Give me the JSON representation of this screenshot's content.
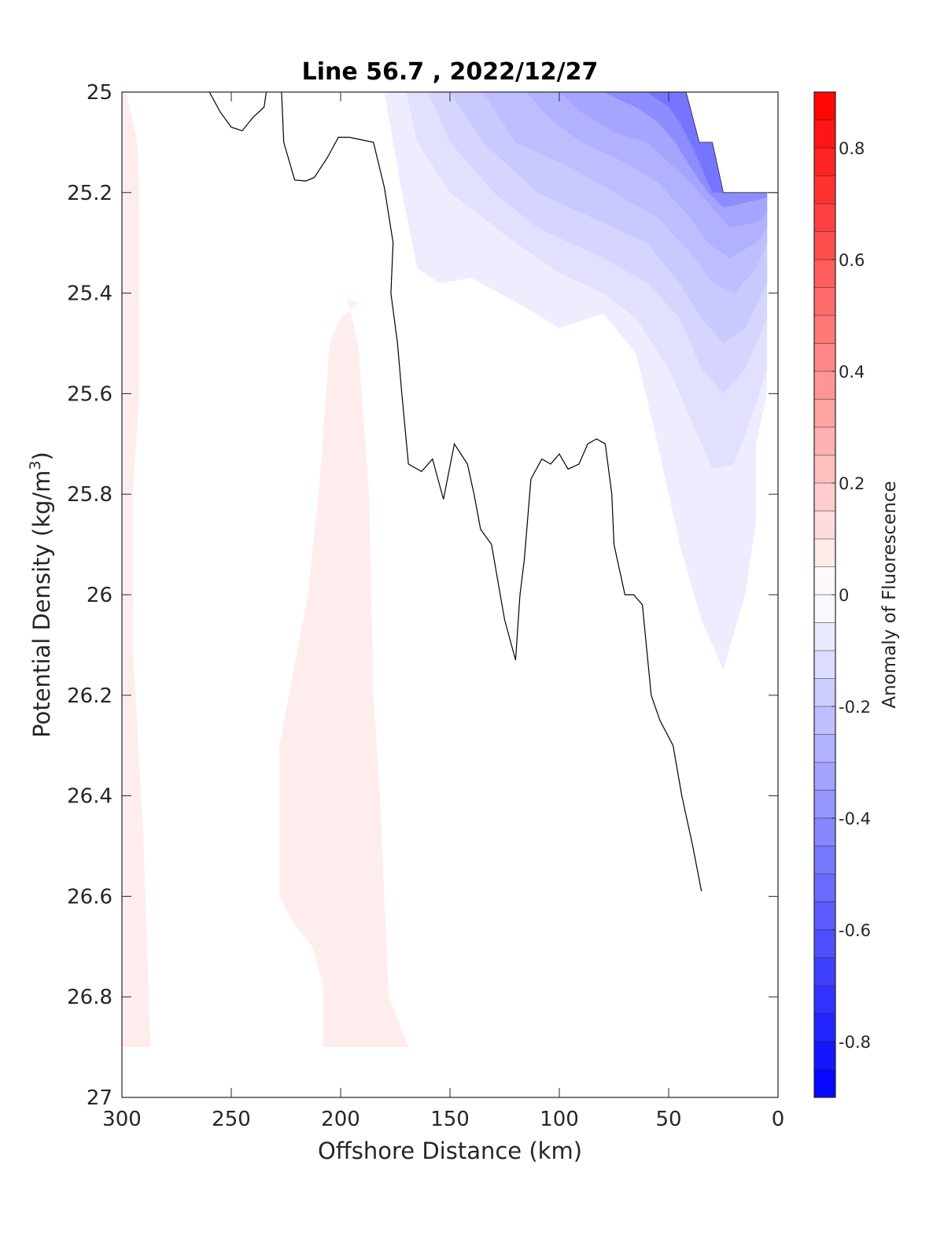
{
  "chart_data": {
    "type": "contour",
    "title": "Line 56.7 , 2022/12/27",
    "xlabel": "Offshore Distance (km)",
    "ylabel": "Potential Density (kg/m",
    "ylabel_superscript": "3",
    "ylabel_suffix": ")",
    "xlim": [
      300,
      0
    ],
    "ylim": [
      25,
      27
    ],
    "x_reversed": true,
    "y_reversed": true,
    "xticks": [
      300,
      250,
      200,
      150,
      100,
      50,
      0
    ],
    "yticks": [
      25,
      25.2,
      25.4,
      25.6,
      25.8,
      26,
      26.2,
      26.4,
      26.6,
      26.8,
      27
    ],
    "xtick_labels": [
      "300",
      "250",
      "200",
      "150",
      "100",
      "50",
      "0"
    ],
    "ytick_labels": [
      "25",
      "25.2",
      "25.4",
      "25.6",
      "25.8",
      "26",
      "26.2",
      "26.4",
      "26.6",
      "26.8",
      "27"
    ],
    "grid": false,
    "colorbar": {
      "label": "Anomaly of Fluorescence",
      "range": [
        -0.9,
        0.9
      ],
      "step": 0.05,
      "ticks": [
        0.8,
        0.6,
        0.4,
        0.2,
        0,
        -0.2,
        -0.4,
        -0.6,
        -0.8
      ],
      "tick_labels": [
        "0.8",
        "0.6",
        "0.4",
        "0.2",
        "0",
        "-0.2",
        "-0.4",
        "-0.6",
        "-0.8"
      ],
      "colormap": "blue-white-red",
      "low_color": "#0000ff",
      "mid_color": "#ffffff",
      "high_color": "#ff0000"
    },
    "no_data_region": [
      [
        42,
        25.0
      ],
      [
        36,
        25.1
      ],
      [
        30,
        25.1
      ],
      [
        25,
        25.2
      ],
      [
        0,
        25.2
      ],
      [
        0,
        25.0
      ]
    ],
    "positive_regions": [
      {
        "level": 0.05,
        "polygon": [
          [
            298,
            25.0
          ],
          [
            293,
            25.1
          ],
          [
            292,
            25.2
          ],
          [
            292,
            25.6
          ],
          [
            295,
            25.8
          ],
          [
            295,
            26.1
          ],
          [
            290,
            26.5
          ],
          [
            287,
            26.9
          ],
          [
            300,
            26.9
          ],
          [
            300,
            25.0
          ]
        ]
      },
      {
        "level": 0.05,
        "polygon": [
          [
            192,
            25.42
          ],
          [
            197,
            25.41
          ],
          [
            192,
            25.5
          ],
          [
            187,
            25.8
          ],
          [
            185,
            26.2
          ],
          [
            182,
            26.4
          ],
          [
            180,
            26.6
          ],
          [
            178,
            26.8
          ],
          [
            169,
            26.9
          ],
          [
            208,
            26.9
          ],
          [
            208,
            26.78
          ],
          [
            213,
            26.7
          ],
          [
            222,
            26.65
          ],
          [
            228,
            26.6
          ],
          [
            228,
            26.3
          ],
          [
            215,
            26.0
          ],
          [
            210,
            25.8
          ],
          [
            205,
            25.5
          ],
          [
            200,
            25.45
          ]
        ]
      }
    ],
    "negative_regions": [
      {
        "level": -0.05,
        "polygon": [
          [
            180,
            25.0
          ],
          [
            172,
            25.2
          ],
          [
            165,
            25.35
          ],
          [
            155,
            25.38
          ],
          [
            140,
            25.37
          ],
          [
            115,
            25.43
          ],
          [
            100,
            25.47
          ],
          [
            80,
            25.44
          ],
          [
            65,
            25.52
          ],
          [
            55,
            25.7
          ],
          [
            45,
            25.9
          ],
          [
            35,
            26.05
          ],
          [
            25,
            26.15
          ],
          [
            15,
            26.0
          ],
          [
            10,
            25.85
          ],
          [
            10,
            25.7
          ],
          [
            5,
            25.6
          ],
          [
            5,
            25.2
          ],
          [
            25,
            25.2
          ],
          [
            30,
            25.1
          ],
          [
            36,
            25.1
          ],
          [
            42,
            25.0
          ]
        ]
      },
      {
        "level": -0.1,
        "polygon": [
          [
            170,
            25.0
          ],
          [
            165,
            25.1
          ],
          [
            150,
            25.2
          ],
          [
            120,
            25.3
          ],
          [
            100,
            25.36
          ],
          [
            80,
            25.4
          ],
          [
            65,
            25.45
          ],
          [
            50,
            25.55
          ],
          [
            40,
            25.65
          ],
          [
            30,
            25.75
          ],
          [
            20,
            25.74
          ],
          [
            10,
            25.62
          ],
          [
            5,
            25.55
          ],
          [
            5,
            25.2
          ],
          [
            25,
            25.2
          ],
          [
            30,
            25.1
          ],
          [
            36,
            25.1
          ],
          [
            42,
            25.0
          ]
        ]
      },
      {
        "level": -0.15,
        "polygon": [
          [
            160,
            25.0
          ],
          [
            150,
            25.1
          ],
          [
            130,
            25.2
          ],
          [
            110,
            25.27
          ],
          [
            80,
            25.33
          ],
          [
            60,
            25.38
          ],
          [
            45,
            25.45
          ],
          [
            35,
            25.55
          ],
          [
            25,
            25.6
          ],
          [
            15,
            25.55
          ],
          [
            5,
            25.45
          ],
          [
            5,
            25.2
          ],
          [
            25,
            25.2
          ],
          [
            30,
            25.1
          ],
          [
            36,
            25.1
          ],
          [
            42,
            25.0
          ]
        ]
      },
      {
        "level": -0.2,
        "polygon": [
          [
            150,
            25.0
          ],
          [
            135,
            25.1
          ],
          [
            110,
            25.2
          ],
          [
            80,
            25.26
          ],
          [
            60,
            25.3
          ],
          [
            45,
            25.38
          ],
          [
            35,
            25.45
          ],
          [
            25,
            25.5
          ],
          [
            15,
            25.47
          ],
          [
            5,
            25.38
          ],
          [
            5,
            25.2
          ],
          [
            25,
            25.2
          ],
          [
            30,
            25.1
          ],
          [
            36,
            25.1
          ],
          [
            42,
            25.0
          ]
        ]
      },
      {
        "level": -0.25,
        "polygon": [
          [
            135,
            25.0
          ],
          [
            120,
            25.1
          ],
          [
            95,
            25.15
          ],
          [
            75,
            25.2
          ],
          [
            55,
            25.25
          ],
          [
            40,
            25.32
          ],
          [
            30,
            25.38
          ],
          [
            20,
            25.4
          ],
          [
            10,
            25.35
          ],
          [
            5,
            25.3
          ],
          [
            5,
            25.2
          ],
          [
            25,
            25.2
          ],
          [
            30,
            25.1
          ],
          [
            36,
            25.1
          ],
          [
            42,
            25.0
          ]
        ]
      },
      {
        "level": -0.3,
        "polygon": [
          [
            115,
            25.0
          ],
          [
            105,
            25.05
          ],
          [
            90,
            25.1
          ],
          [
            70,
            25.14
          ],
          [
            55,
            25.18
          ],
          [
            42,
            25.24
          ],
          [
            32,
            25.3
          ],
          [
            22,
            25.33
          ],
          [
            10,
            25.3
          ],
          [
            5,
            25.27
          ],
          [
            5,
            25.2
          ],
          [
            25,
            25.2
          ],
          [
            30,
            25.1
          ],
          [
            36,
            25.1
          ],
          [
            42,
            25.0
          ]
        ]
      },
      {
        "level": -0.35,
        "polygon": [
          [
            100,
            25.0
          ],
          [
            90,
            25.04
          ],
          [
            75,
            25.08
          ],
          [
            60,
            25.1
          ],
          [
            50,
            25.14
          ],
          [
            40,
            25.18
          ],
          [
            32,
            25.22
          ],
          [
            22,
            25.27
          ],
          [
            10,
            25.26
          ],
          [
            5,
            25.24
          ],
          [
            5,
            25.2
          ],
          [
            25,
            25.2
          ],
          [
            30,
            25.1
          ],
          [
            36,
            25.1
          ],
          [
            42,
            25.0
          ]
        ]
      },
      {
        "level": -0.45,
        "polygon": [
          [
            80,
            25.0
          ],
          [
            65,
            25.03
          ],
          [
            55,
            25.06
          ],
          [
            47,
            25.1
          ],
          [
            40,
            25.15
          ],
          [
            32,
            25.2
          ],
          [
            25,
            25.23
          ],
          [
            15,
            25.22
          ],
          [
            5,
            25.21
          ],
          [
            5,
            25.2
          ],
          [
            25,
            25.2
          ],
          [
            30,
            25.1
          ],
          [
            36,
            25.1
          ],
          [
            42,
            25.0
          ]
        ]
      },
      {
        "level": -0.55,
        "polygon": [
          [
            60,
            25.0
          ],
          [
            50,
            25.03
          ],
          [
            45,
            25.06
          ],
          [
            38,
            25.12
          ],
          [
            30,
            25.2
          ],
          [
            25,
            25.2
          ],
          [
            30,
            25.1
          ],
          [
            36,
            25.1
          ],
          [
            42,
            25.0
          ]
        ]
      }
    ],
    "zero_contour": [
      [
        [
          260,
          25.0
        ],
        [
          255,
          25.04
        ],
        [
          250,
          25.07
        ],
        [
          245,
          25.077
        ],
        [
          240,
          25.05
        ],
        [
          235,
          25.03
        ],
        [
          234,
          25.0
        ]
      ],
      [
        [
          227,
          25.0
        ],
        [
          226,
          25.1
        ],
        [
          221,
          25.175
        ],
        [
          216,
          25.177
        ],
        [
          212,
          25.17
        ],
        [
          206,
          25.13
        ],
        [
          201,
          25.09
        ],
        [
          196,
          25.09
        ],
        [
          185,
          25.1
        ],
        [
          180,
          25.19
        ],
        [
          176,
          25.3
        ],
        [
          177,
          25.4
        ],
        [
          174,
          25.5
        ],
        [
          172,
          25.6
        ],
        [
          169,
          25.74
        ],
        [
          163,
          25.755
        ],
        [
          158,
          25.73
        ],
        [
          153,
          25.81
        ],
        [
          148,
          25.7
        ],
        [
          142,
          25.74
        ],
        [
          139,
          25.8
        ],
        [
          136,
          25.87
        ],
        [
          131,
          25.9
        ],
        [
          127,
          26.0
        ],
        [
          125,
          26.05
        ],
        [
          120,
          26.13
        ],
        [
          118,
          26.0
        ],
        [
          116,
          25.93
        ],
        [
          113,
          25.77
        ],
        [
          108,
          25.73
        ],
        [
          104,
          25.74
        ],
        [
          100,
          25.72
        ],
        [
          96,
          25.75
        ],
        [
          91,
          25.74
        ],
        [
          87,
          25.7
        ],
        [
          83,
          25.69
        ],
        [
          79,
          25.7
        ],
        [
          76,
          25.8
        ],
        [
          75,
          25.9
        ],
        [
          70,
          26.0
        ],
        [
          66,
          26.0
        ],
        [
          62,
          26.02
        ],
        [
          58,
          26.2
        ],
        [
          54,
          26.25
        ],
        [
          48,
          26.3
        ],
        [
          44,
          26.4
        ],
        [
          39,
          26.5
        ],
        [
          35,
          26.59
        ]
      ]
    ]
  }
}
